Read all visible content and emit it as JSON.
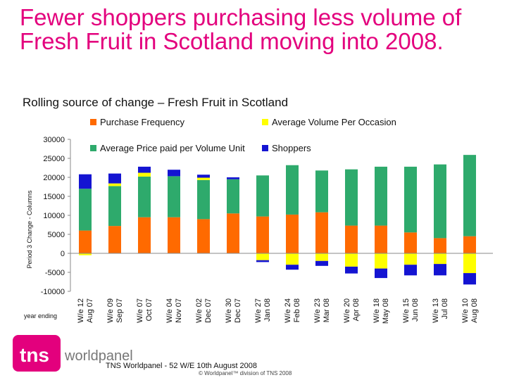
{
  "title_line1": "Fewer shoppers purchasing less volume of",
  "title_line2": "Fresh Fruit in Scotland moving into 2008.",
  "subtitle": "Rolling source of change – Fresh Fruit in Scotland",
  "footer": "TNS Worldpanel - 52 W/E 10th August 2008",
  "copyright": "© Worldpanel™ division of TNS 2008",
  "logo": {
    "mark": "tns",
    "text": "worldpanel"
  },
  "colors": {
    "purchase_frequency": "#ff6a00",
    "avg_volume": "#ffff00",
    "avg_price": "#2eaa6c",
    "shoppers": "#1414d2",
    "title": "#e3007d"
  },
  "chart_data": {
    "type": "bar",
    "stacked": true,
    "ylabel": "Period 3 Change - Columns",
    "xlabel": "year ending",
    "ylim": [
      -10000,
      30000
    ],
    "yticks": [
      30000,
      25000,
      20000,
      15000,
      10000,
      5000,
      0,
      -5000,
      -10000
    ],
    "legend_position": "top",
    "categories": [
      "52 W/e 12 Aug 07",
      "52 W/e 09 Sep 07",
      "52 W/e 07 Oct 07",
      "52 W/e 04 Nov 07",
      "52 W/e 02 Dec 07",
      "52 W/e 30 Dec 07",
      "52 W/e 27 Jan 08",
      "52 W/e 24 Feb 08",
      "52 W/e 23 Mar 08",
      "52 W/e 20 Apr 08",
      "52 W/e 18 May 08",
      "52 W/e 15 Jun 08",
      "52 W/e 13 Jul 08",
      "52 W/e 10 Aug 08"
    ],
    "category_lines": [
      [
        "52 W/e 12",
        "Aug 07"
      ],
      [
        "52 W/e 09",
        "Sep 07"
      ],
      [
        "52 W/e 07",
        "Oct 07"
      ],
      [
        "52 W/e 04",
        "Nov 07"
      ],
      [
        "52 W/e 02",
        "Dec 07"
      ],
      [
        "52 W/e 30",
        "Dec 07"
      ],
      [
        "52 W/e 27",
        "Jan 08"
      ],
      [
        "52 W/e 24",
        "Feb 08"
      ],
      [
        "52 W/e 23",
        "Mar 08"
      ],
      [
        "52 W/e 20",
        "Apr 08"
      ],
      [
        "52 W/e 18",
        "May 08"
      ],
      [
        "52 W/e 15",
        "Jun 08"
      ],
      [
        "52 W/e 13",
        "Jul 08"
      ],
      [
        "52 W/e 10",
        "Aug 08"
      ]
    ],
    "series": [
      {
        "name": "Purchase Frequency",
        "color": "#ff6a00",
        "values": [
          6000,
          7200,
          9500,
          9500,
          9000,
          10500,
          9700,
          10200,
          10800,
          7300,
          7300,
          5500,
          4000,
          4500
        ]
      },
      {
        "name": "Average Volume Per Occasion",
        "color": "#ffff00",
        "values": [
          -500,
          700,
          1000,
          0,
          600,
          0,
          -1800,
          -3000,
          -2000,
          -3500,
          -4000,
          -3000,
          -2800,
          -5200
        ]
      },
      {
        "name": "Average Price paid per Volume Unit",
        "color": "#2eaa6c",
        "values": [
          11000,
          10500,
          10700,
          10800,
          10300,
          9000,
          10800,
          13000,
          11000,
          14800,
          15500,
          17300,
          19400,
          21400
        ]
      },
      {
        "name": "Shoppers",
        "color": "#1414d2",
        "values": [
          3800,
          2600,
          1600,
          1700,
          800,
          500,
          -500,
          -1300,
          -1300,
          -1800,
          -2500,
          -2800,
          -3000,
          -3000
        ]
      }
    ]
  }
}
